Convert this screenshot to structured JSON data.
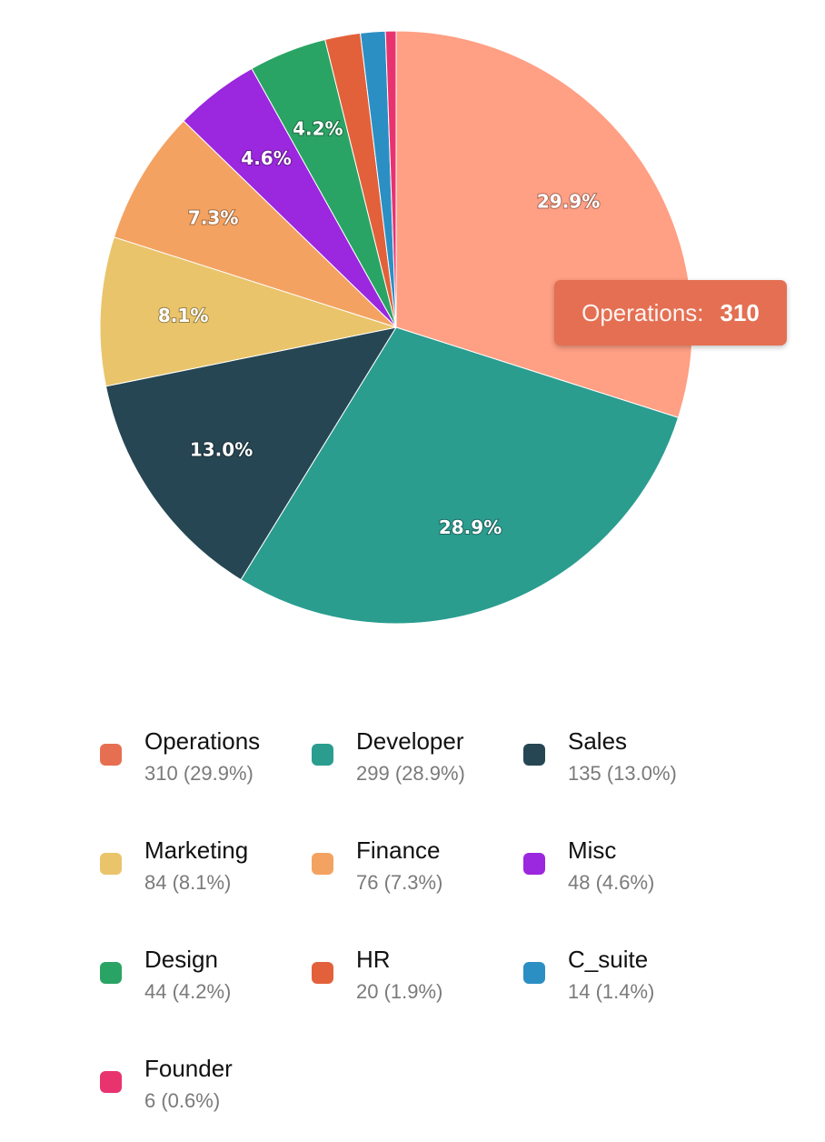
{
  "chart_data": {
    "type": "pie",
    "title": "",
    "start_angle_deg": 0,
    "slices": [
      {
        "name": "Operations",
        "value": 310,
        "percent_label": "29.9%",
        "legend_sub": "310 (29.9%)",
        "color": "#ff9f84",
        "swatch": "#e76f51"
      },
      {
        "name": "Developer",
        "value": 299,
        "percent_label": "28.9%",
        "legend_sub": "299 (28.9%)",
        "color": "#2a9d8f",
        "swatch": "#2a9d8f"
      },
      {
        "name": "Sales",
        "value": 135,
        "percent_label": "13.0%",
        "legend_sub": "135 (13.0%)",
        "color": "#264653",
        "swatch": "#264653"
      },
      {
        "name": "Marketing",
        "value": 84,
        "percent_label": "8.1%",
        "legend_sub": "84 (8.1%)",
        "color": "#e9c46a",
        "swatch": "#e9c46a"
      },
      {
        "name": "Finance",
        "value": 76,
        "percent_label": "7.3%",
        "legend_sub": "76 (7.3%)",
        "color": "#f4a261",
        "swatch": "#f4a261"
      },
      {
        "name": "Misc",
        "value": 48,
        "percent_label": "4.6%",
        "legend_sub": "48 (4.6%)",
        "color": "#9b27de",
        "swatch": "#9b27de"
      },
      {
        "name": "Design",
        "value": 44,
        "percent_label": "4.2%",
        "legend_sub": "44 (4.2%)",
        "color": "#2aa464",
        "swatch": "#2aa464"
      },
      {
        "name": "HR",
        "value": 20,
        "percent_label": "",
        "legend_sub": "20 (1.9%)",
        "color": "#e2613a",
        "swatch": "#e2613a"
      },
      {
        "name": "C_suite",
        "value": 14,
        "percent_label": "",
        "legend_sub": "14 (1.4%)",
        "color": "#2b8fc4",
        "swatch": "#2b8fc4"
      },
      {
        "name": "Founder",
        "value": 6,
        "percent_label": "",
        "legend_sub": "6 (0.6%)",
        "color": "#e8336f",
        "swatch": "#e8336f"
      }
    ],
    "legend_placement": "bottom"
  },
  "tooltip": {
    "label": "Operations:",
    "value": "310"
  }
}
